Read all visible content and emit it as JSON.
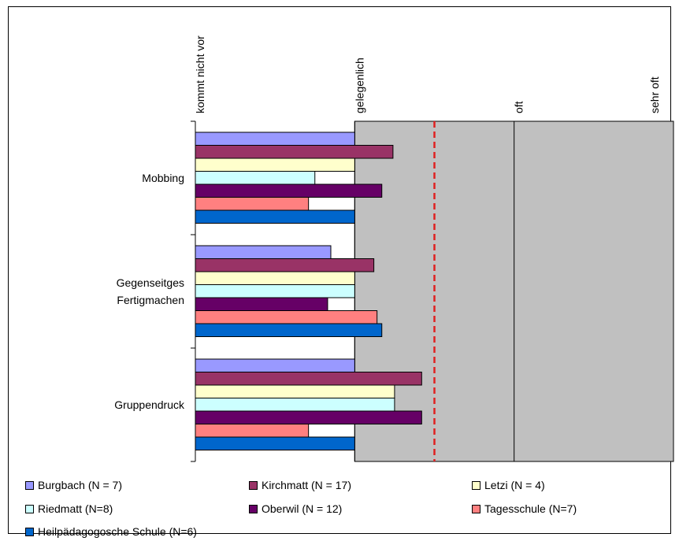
{
  "chart_data": {
    "type": "bar",
    "orientation": "horizontal",
    "title": "",
    "xlabel": "",
    "ylabel": "",
    "x_tick_labels": [
      "kommt nicht vor",
      "gelegenlich",
      "oft",
      "sehr oft"
    ],
    "xlim": [
      1,
      4
    ],
    "grid": true,
    "reference_line": {
      "value": 2.5,
      "style": "dashed",
      "color": "#E02020"
    },
    "categories": [
      "Mobbing",
      "Gegenseitges Fertigmachen",
      "Gruppendruck"
    ],
    "series": [
      {
        "name": "Burgbach (N = 7)",
        "color": "#9999FF",
        "values": [
          2.0,
          1.85,
          2.0
        ]
      },
      {
        "name": "Kirchmatt (N = 17)",
        "color": "#993366",
        "values": [
          2.24,
          2.12,
          2.42
        ]
      },
      {
        "name": "Letzi (N = 4)",
        "color": "#FFFFCC",
        "values": [
          2.0,
          2.0,
          2.25
        ]
      },
      {
        "name": "Riedmatt (N=8)",
        "color": "#CCFFFF",
        "values": [
          1.75,
          2.0,
          2.25
        ]
      },
      {
        "name": "Oberwil (N = 12)",
        "color": "#660066",
        "values": [
          2.17,
          1.83,
          2.42
        ]
      },
      {
        "name": "Tagesschule (N=7)",
        "color": "#FF8080",
        "values": [
          1.71,
          2.14,
          1.71
        ]
      },
      {
        "name": "Heilpädagogosche Schule (N=6)",
        "color": "#0066CC",
        "values": [
          2.0,
          2.17,
          2.0
        ]
      }
    ],
    "legend_position": "bottom",
    "plot_background": "#C0C0C0"
  }
}
